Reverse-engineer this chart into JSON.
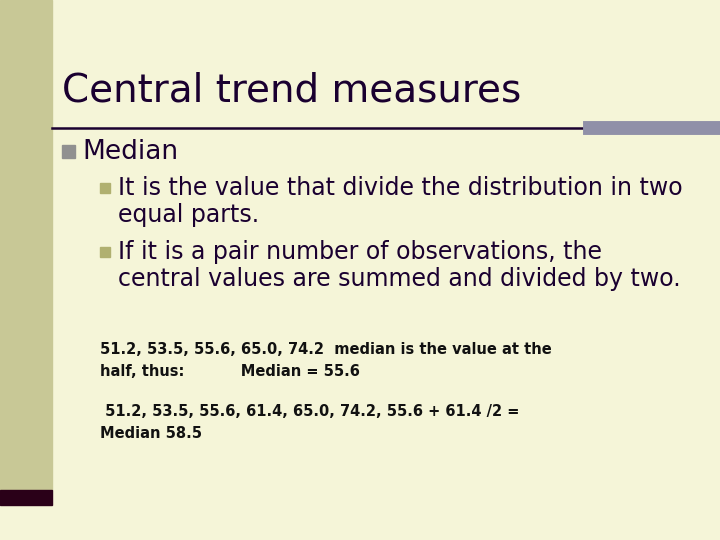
{
  "title": "Central trend measures",
  "bg_color": "#f5f5d8",
  "left_bar_color": "#c8c896",
  "left_bar_bottom_color": "#2a0018",
  "title_color": "#1a0030",
  "bullet_color_main": "#909090",
  "bullet_color_sub": "#b0b070",
  "top_rule_color": "#1a0030",
  "top_rule_right_color": "#9090a8",
  "body_text_color": "#1a1a1a",
  "example_text_color": "#111111",
  "title_fontsize": 28,
  "heading_fontsize": 19,
  "sub_fontsize": 17,
  "example_fontsize": 10.5,
  "bullet1": "Median",
  "sub1": "It is the value that divide the distribution in two\nequal parts.",
  "sub2": "If it is a pair number of observations, the\ncentral values are summed and divided by two.",
  "example1_line1": "51.2, 53.5, 55.6, 65.0, 74.2  median is the value at the",
  "example1_line2": "half, thus:           Median = 55.6",
  "example2_line1": " 51.2, 53.5, 55.6, 61.4, 65.0, 74.2, 55.6 + 61.4 /2 =",
  "example2_line2": "Median 58.5"
}
